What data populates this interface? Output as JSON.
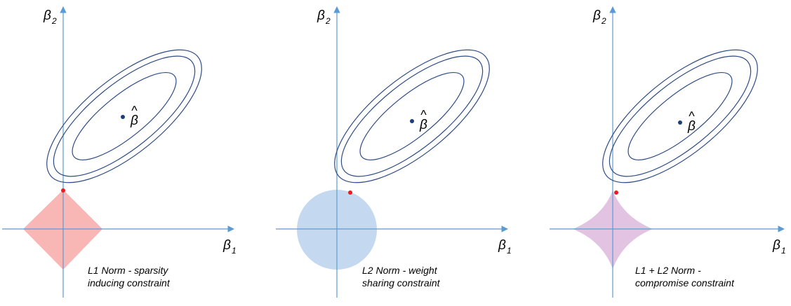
{
  "panels": [
    {
      "id": "l1",
      "beta2_label": "β",
      "beta2_sub": "2",
      "beta1_label": "β",
      "beta1_sub": "1",
      "beta_hat_label": "β",
      "caption_line1": "L1 Norm - sparsity",
      "caption_line2": "inducing constraint",
      "constraint_shape": "diamond",
      "constraint_color": "#f8b6b4"
    },
    {
      "id": "l2",
      "beta2_label": "β",
      "beta2_sub": "2",
      "beta1_label": "β",
      "beta1_sub": "1",
      "beta_hat_label": "β",
      "caption_line1": "L2 Norm - weight",
      "caption_line2": "sharing constraint",
      "constraint_shape": "circle",
      "constraint_color": "#c4d9ef"
    },
    {
      "id": "l1l2",
      "beta2_label": "β",
      "beta2_sub": "2",
      "beta1_label": "β",
      "beta1_sub": "1",
      "beta_hat_label": "β",
      "caption_line1": "L1 + L2 Norm -",
      "caption_line2": "compromise constraint",
      "constraint_shape": "elastic-net",
      "constraint_color": "#e2c4e2"
    }
  ],
  "colors": {
    "axis": "#5b9bd5",
    "contour": "#2e4c86",
    "center_dot": "#1f3f7a",
    "tangent_point": "#e81c23"
  }
}
